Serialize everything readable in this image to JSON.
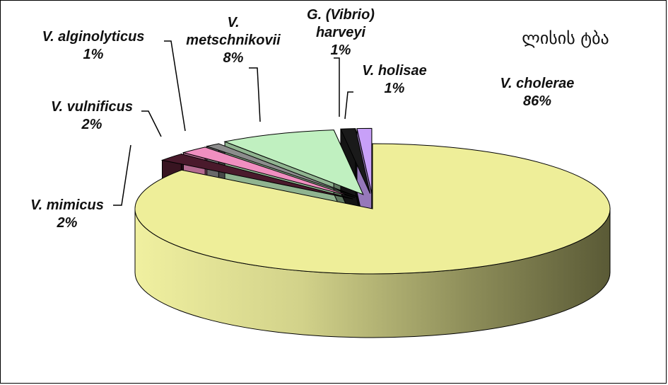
{
  "chart_data": {
    "type": "pie",
    "title": "ლისის ტბა",
    "style": "3d-exploded",
    "slices": [
      {
        "name": "V. cholerae",
        "label_lines": [
          "V. cholerae",
          "86%"
        ],
        "value": 86,
        "color": "#eeee99"
      },
      {
        "name": "V. mimicus",
        "label_lines": [
          "V. mimicus",
          "2%"
        ],
        "value": 2,
        "color": "#4a1a2c"
      },
      {
        "name": "V. vulnificus",
        "label_lines": [
          "V. vulnificus",
          "2%"
        ],
        "value": 2,
        "color": "#f08fc0"
      },
      {
        "name": "V. alginolyticus",
        "label_lines": [
          "V. alginolyticus",
          "1%"
        ],
        "value": 1,
        "color": "#8c8c8c"
      },
      {
        "name": "V. metschnikovii",
        "label_lines": [
          "V.",
          "metschnikovii",
          "8%"
        ],
        "value": 8,
        "color": "#c0f0c0"
      },
      {
        "name": "G. (Vibrio) harveyi",
        "label_lines": [
          "G. (Vibrio)",
          "harveyi",
          "1%"
        ],
        "value": 1,
        "color": "#1a1a1a"
      },
      {
        "name": "V. holisae",
        "label_lines": [
          "V. holisae",
          "1%"
        ],
        "value": 1,
        "color": "#c8a0f8"
      }
    ]
  }
}
